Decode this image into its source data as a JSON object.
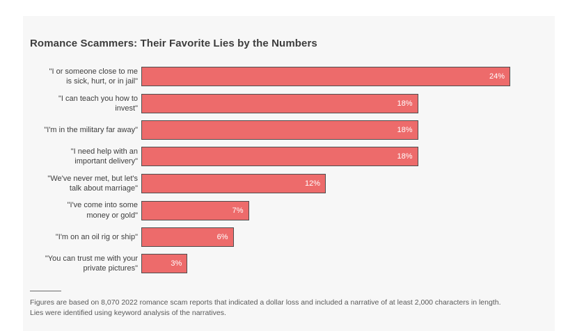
{
  "page": {
    "background_color": "#ffffff",
    "panel_background_color": "#f7f7f7"
  },
  "chart_data": {
    "type": "bar",
    "orientation": "horizontal",
    "title": "Romance Scammers: Their Favorite Lies by the Numbers",
    "categories": [
      "\"I or someone close to me is sick, hurt, or in jail\"",
      "\"I can teach you how to invest\"",
      "\"I'm in the military far away\"",
      "\"I need help with an important delivery\"",
      "\"We've never met, but let's talk about marriage\"",
      "\"I've come into some money or gold\"",
      "\"I'm on an oil rig or ship\"",
      "\"You can trust me with your private pictures\""
    ],
    "label_lines": [
      [
        "\"I or someone close to me",
        "is sick, hurt, or in jail\""
      ],
      [
        "\"I can teach you how to",
        "invest\""
      ],
      [
        "\"I'm in the military far away\""
      ],
      [
        "\"I need help with an",
        "important delivery\""
      ],
      [
        "\"We've never met, but let's",
        "talk about marriage\""
      ],
      [
        "\"I've come into some",
        "money or gold\""
      ],
      [
        "\"I'm on an oil rig or ship\""
      ],
      [
        "\"You can trust me with your",
        "private pictures\""
      ]
    ],
    "values": [
      24,
      18,
      18,
      18,
      12,
      7,
      6,
      3
    ],
    "value_labels": [
      "24%",
      "18%",
      "18%",
      "18%",
      "12%",
      "7%",
      "6%",
      "3%"
    ],
    "value_suffix": "%",
    "xlabel": "",
    "ylabel": "",
    "xlim": [
      0,
      24
    ],
    "grid": false,
    "legend": false,
    "bar_color": "#ed6b6b",
    "bar_border_color": "#4e4e4e",
    "value_label_color": "#ffffff"
  },
  "footnote": {
    "lines": [
      "Figures are based on 8,070 2022 romance scam reports that indicated a dollar loss and included a narrative of at least 2,000 characters in length.",
      "Lies were identified using keyword analysis of the narratives."
    ]
  }
}
